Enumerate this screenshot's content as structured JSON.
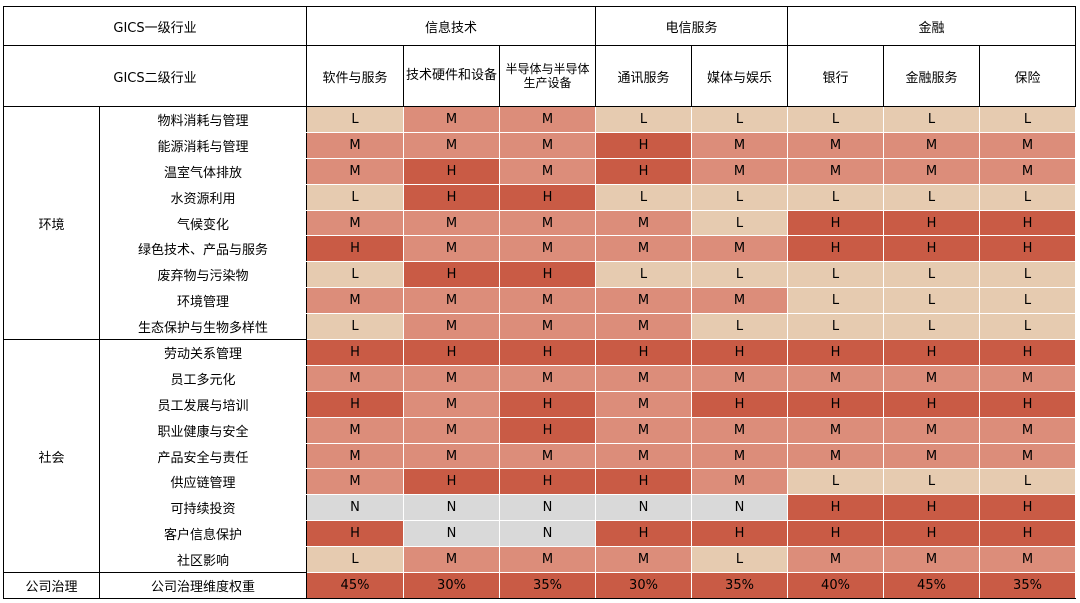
{
  "header": {
    "level1_label": "GICS一级行业",
    "level2_label": "GICS二级行业",
    "sectors": [
      {
        "name": "信息技术",
        "span": 3
      },
      {
        "name": "电信服务",
        "span": 2
      },
      {
        "name": "金融",
        "span": 3
      }
    ],
    "industries": [
      "软件与服务",
      "技术硬件和设备",
      "半导体与半导体生产设备",
      "通讯服务",
      "媒体与娱乐",
      "银行",
      "金融服务",
      "保险"
    ]
  },
  "groups": [
    {
      "name": "环境",
      "rows": [
        {
          "label": "物料消耗与管理",
          "values": [
            "L",
            "M",
            "M",
            "L",
            "L",
            "L",
            "L",
            "L"
          ]
        },
        {
          "label": "能源消耗与管理",
          "values": [
            "M",
            "M",
            "M",
            "H",
            "M",
            "M",
            "M",
            "M"
          ]
        },
        {
          "label": "温室气体排放",
          "values": [
            "M",
            "H",
            "M",
            "H",
            "M",
            "M",
            "M",
            "M"
          ]
        },
        {
          "label": "水资源利用",
          "values": [
            "L",
            "H",
            "H",
            "L",
            "L",
            "L",
            "L",
            "L"
          ]
        },
        {
          "label": "气候变化",
          "values": [
            "M",
            "M",
            "M",
            "M",
            "L",
            "H",
            "H",
            "H"
          ]
        },
        {
          "label": "绿色技术、产品与服务",
          "values": [
            "H",
            "M",
            "M",
            "M",
            "M",
            "H",
            "H",
            "H"
          ]
        },
        {
          "label": "废弃物与污染物",
          "values": [
            "L",
            "H",
            "H",
            "L",
            "L",
            "L",
            "L",
            "L"
          ]
        },
        {
          "label": "环境管理",
          "values": [
            "M",
            "M",
            "M",
            "M",
            "M",
            "L",
            "L",
            "L"
          ]
        },
        {
          "label": "生态保护与生物多样性",
          "values": [
            "L",
            "M",
            "M",
            "M",
            "L",
            "L",
            "L",
            "L"
          ]
        }
      ]
    },
    {
      "name": "社会",
      "rows": [
        {
          "label": "劳动关系管理",
          "values": [
            "H",
            "H",
            "H",
            "H",
            "H",
            "H",
            "H",
            "H"
          ]
        },
        {
          "label": "员工多元化",
          "values": [
            "M",
            "M",
            "M",
            "M",
            "M",
            "M",
            "M",
            "M"
          ]
        },
        {
          "label": "员工发展与培训",
          "values": [
            "H",
            "M",
            "H",
            "M",
            "H",
            "H",
            "H",
            "H"
          ]
        },
        {
          "label": "职业健康与安全",
          "values": [
            "M",
            "M",
            "H",
            "M",
            "M",
            "M",
            "M",
            "M"
          ]
        },
        {
          "label": "产品安全与责任",
          "values": [
            "M",
            "M",
            "M",
            "M",
            "M",
            "M",
            "M",
            "M"
          ]
        },
        {
          "label": "供应链管理",
          "values": [
            "M",
            "H",
            "H",
            "H",
            "M",
            "L",
            "L",
            "L"
          ]
        },
        {
          "label": "可持续投资",
          "values": [
            "N",
            "N",
            "N",
            "N",
            "N",
            "H",
            "H",
            "H"
          ]
        },
        {
          "label": "客户信息保护",
          "values": [
            "H",
            "N",
            "N",
            "H",
            "H",
            "H",
            "H",
            "H"
          ]
        },
        {
          "label": "社区影响",
          "values": [
            "L",
            "M",
            "M",
            "M",
            "L",
            "M",
            "M",
            "M"
          ]
        }
      ]
    }
  ],
  "governance": {
    "group": "公司治理",
    "label": "公司治理维度权重",
    "values": [
      "45%",
      "30%",
      "35%",
      "30%",
      "35%",
      "40%",
      "45%",
      "35%"
    ]
  },
  "colors": {
    "L": "#e6cbb0",
    "M": "#dc8d7a",
    "H": "#c95b45",
    "N": "#d9d9d9"
  },
  "chart_data": {
    "type": "heatmap",
    "x": [
      "软件与服务",
      "技术硬件和设备",
      "半导体与半导体生产设备",
      "通讯服务",
      "媒体与娱乐",
      "银行",
      "金融服务",
      "保险"
    ],
    "y": [
      "物料消耗与管理",
      "能源消耗与管理",
      "温室气体排放",
      "水资源利用",
      "气候变化",
      "绿色技术、产品与服务",
      "废弃物与污染物",
      "环境管理",
      "生态保护与生物多样性",
      "劳动关系管理",
      "员工多元化",
      "员工发展与培训",
      "职业健康与安全",
      "产品安全与责任",
      "供应链管理",
      "可持续投资",
      "客户信息保护",
      "社区影响",
      "公司治理维度权重"
    ]
  }
}
